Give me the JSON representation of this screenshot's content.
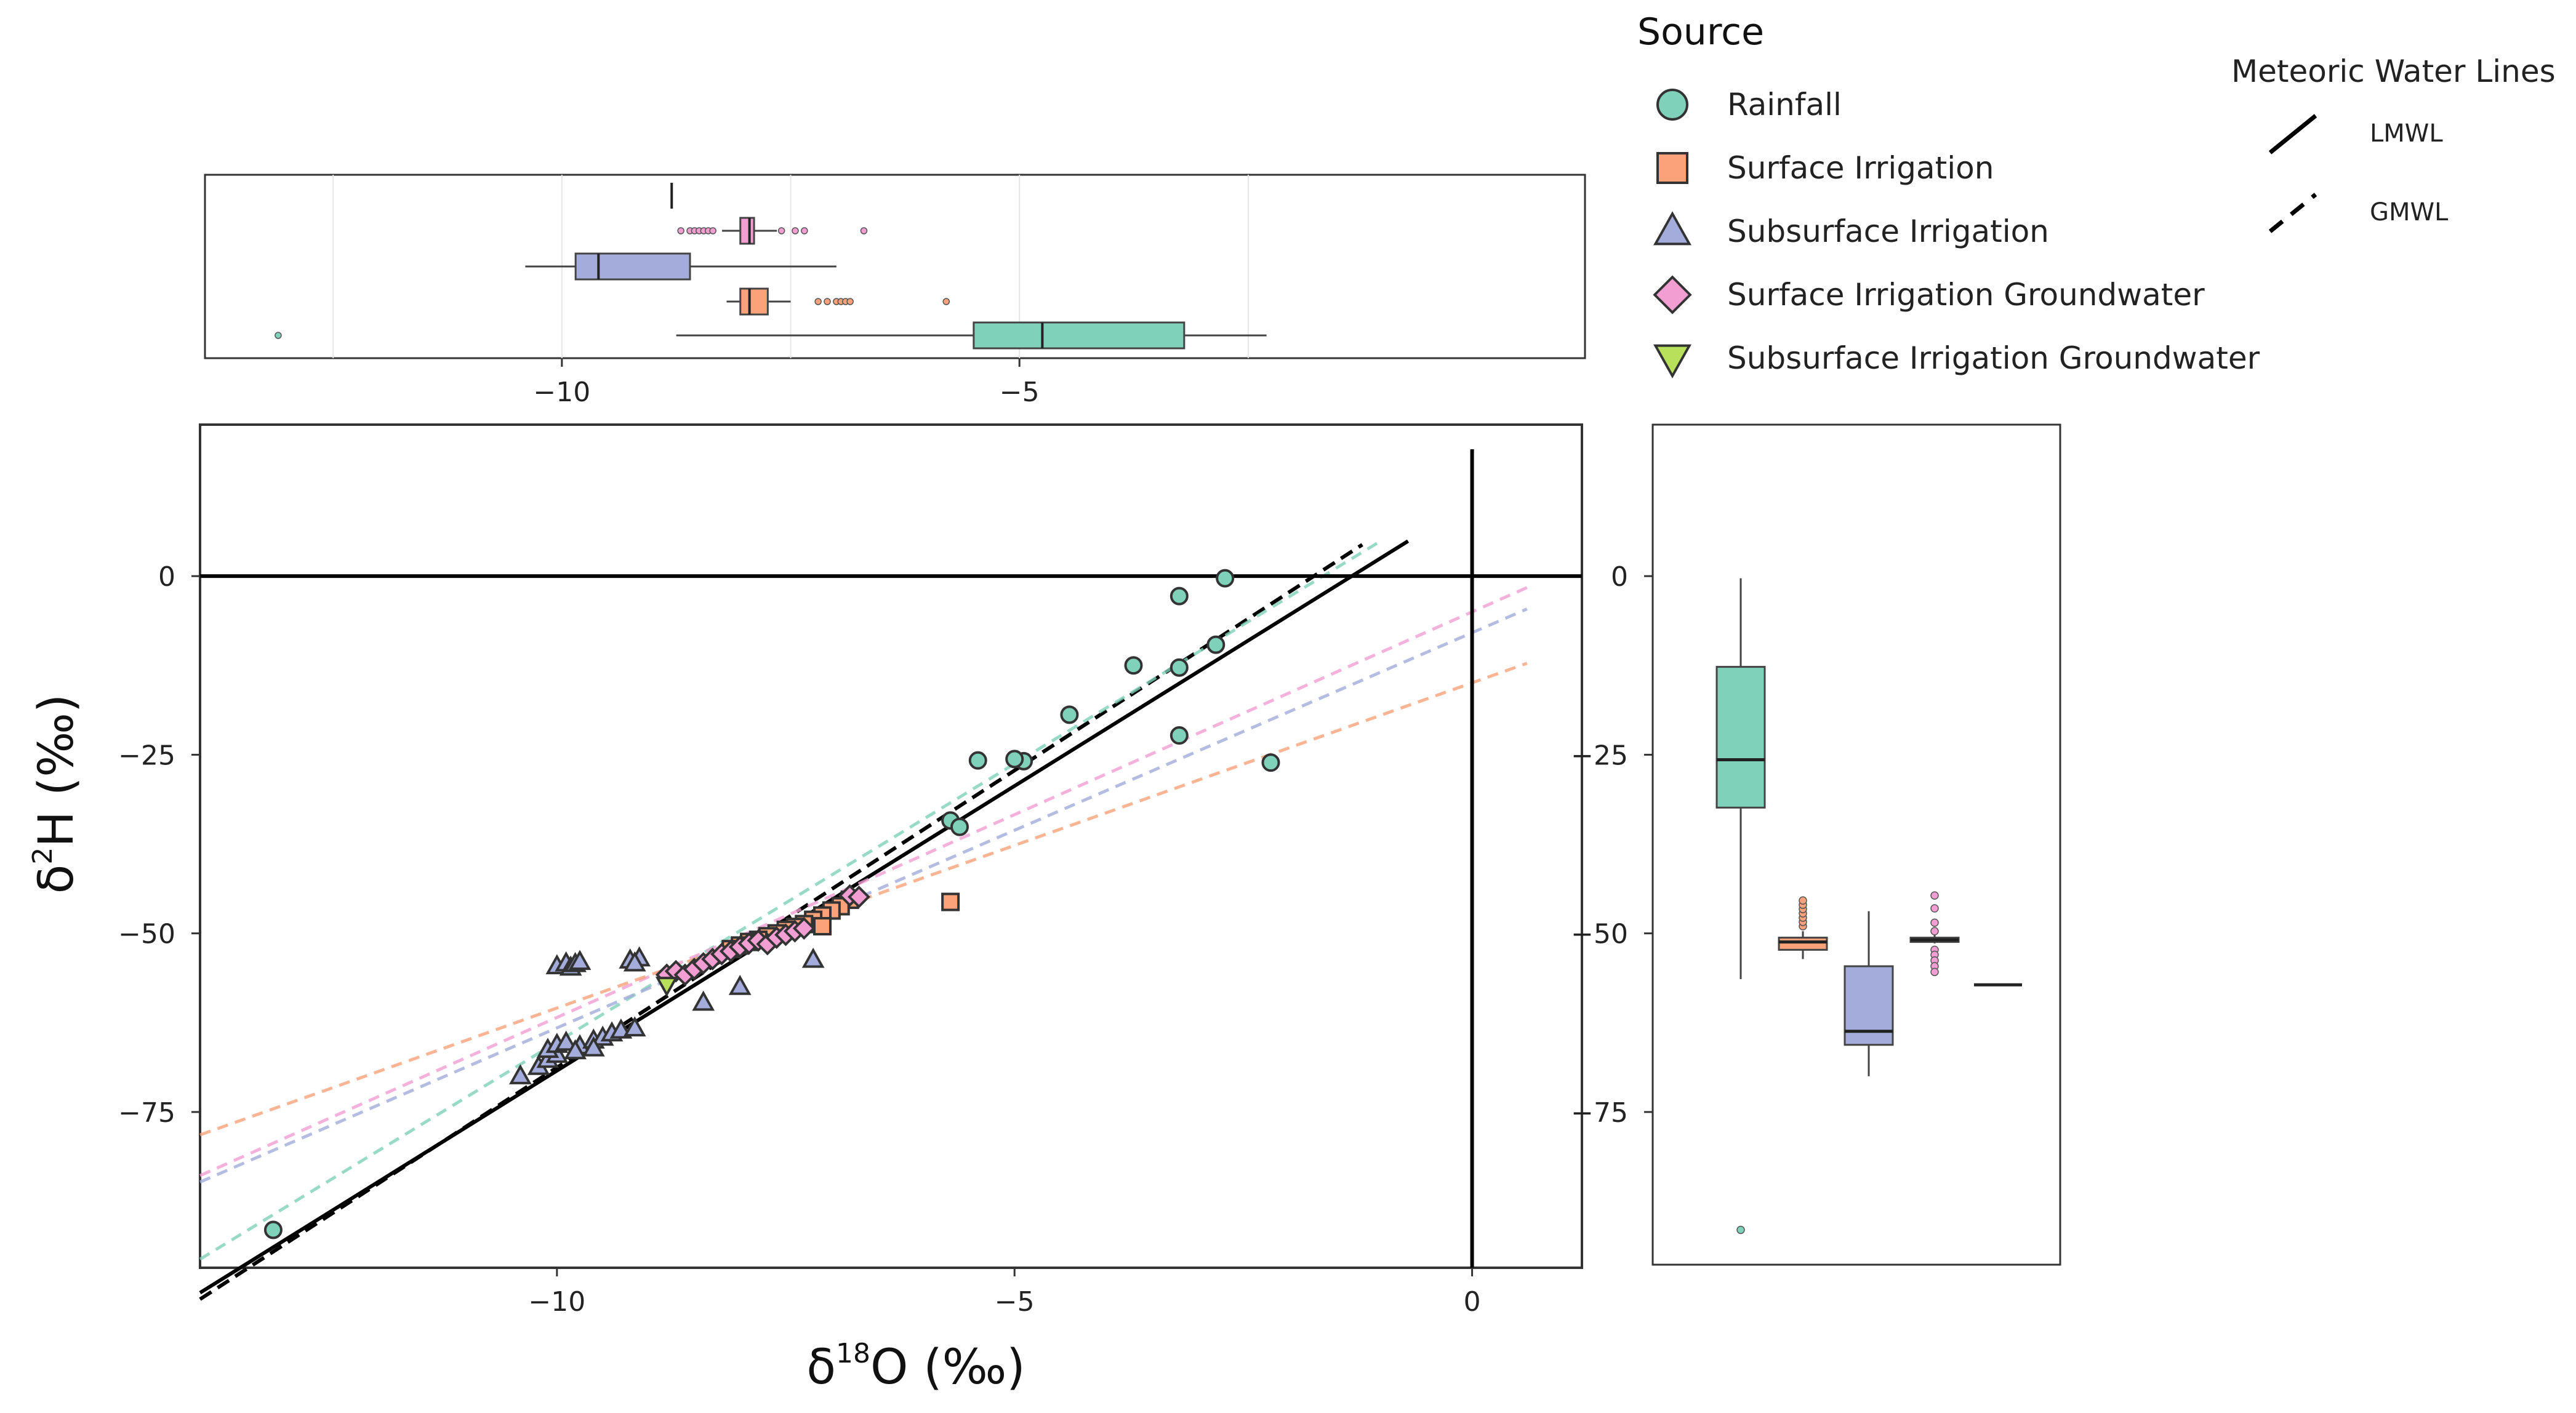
{
  "colors": {
    "Rainfall": "#7fd1b9",
    "SurfaceIrrigation": "#fba27a",
    "SubsurfaceIrrigation": "#a3acda",
    "SurfaceIrrigationGroundwater": "#f29ed3",
    "SubsurfaceIrrigationGroundwater": "#b9e05a"
  },
  "chart_data": [
    {
      "id": "main",
      "type": "scatter",
      "xlabel_base": "δ",
      "xlabel_sup": "18",
      "xlabel_rest": "O (‰)",
      "ylabel_base": "δ",
      "ylabel_sup": "2",
      "ylabel_rest": "H (‰)",
      "xlim": [
        -13.9,
        1.2
      ],
      "ylim": [
        -96.8,
        21.2
      ],
      "xticks": [
        -10,
        -5,
        0
      ],
      "xtick_labels": [
        "−10",
        "−5",
        "0"
      ],
      "yticks": [
        0,
        -25,
        -50,
        -75
      ],
      "ytick_labels": [
        "0",
        "−25",
        "−50",
        "−75"
      ],
      "reference_lines": {
        "x": 0,
        "y": 0
      },
      "series": [
        {
          "name": "Rainfall",
          "marker": "circle",
          "color_key": "Rainfall",
          "points": [
            [
              -13.1,
              -91.5
            ],
            [
              -2.7,
              -0.3
            ],
            [
              -3.2,
              -2.8
            ],
            [
              -3.2,
              -12.8
            ],
            [
              -2.8,
              -9.6
            ],
            [
              -3.7,
              -12.5
            ],
            [
              -4.4,
              -19.4
            ],
            [
              -3.2,
              -22.3
            ],
            [
              -2.2,
              -26.1
            ],
            [
              -4.9,
              -25.9
            ],
            [
              -5.0,
              -25.6
            ],
            [
              -5.4,
              -25.8
            ],
            [
              -5.7,
              -34.2
            ],
            [
              -5.6,
              -35.1
            ]
          ]
        },
        {
          "name": "Surface Irrigation",
          "marker": "square",
          "color_key": "SurfaceIrrigation",
          "points": [
            [
              -5.7,
              -45.6
            ],
            [
              -6.8,
              -45.3
            ],
            [
              -6.9,
              -46.2
            ],
            [
              -7.0,
              -46.8
            ],
            [
              -7.1,
              -47.5
            ],
            [
              -7.2,
              -48.1
            ],
            [
              -7.3,
              -48.7
            ],
            [
              -7.4,
              -49.1
            ],
            [
              -7.5,
              -49.5
            ],
            [
              -7.6,
              -50.0
            ],
            [
              -7.7,
              -50.4
            ],
            [
              -7.8,
              -50.9
            ],
            [
              -7.9,
              -51.2
            ],
            [
              -8.0,
              -51.7
            ],
            [
              -8.1,
              -52.2
            ],
            [
              -7.1,
              -49.0
            ]
          ]
        },
        {
          "name": "Subsurface Irrigation",
          "marker": "triangle-up",
          "color_key": "SubsurfaceIrrigation",
          "points": [
            [
              -10.0,
              -54.6
            ],
            [
              -9.9,
              -54.2
            ],
            [
              -9.85,
              -54.8
            ],
            [
              -9.8,
              -54.3
            ],
            [
              -9.75,
              -54.0
            ],
            [
              -9.2,
              -53.8
            ],
            [
              -9.1,
              -53.5
            ],
            [
              -9.15,
              -54.2
            ],
            [
              -7.2,
              -53.7
            ],
            [
              -8.0,
              -57.5
            ],
            [
              -8.4,
              -59.7
            ],
            [
              -10.4,
              -70.0
            ],
            [
              -10.2,
              -68.7
            ],
            [
              -10.1,
              -67.7
            ],
            [
              -10.0,
              -67.0
            ],
            [
              -10.1,
              -66.3
            ],
            [
              -10.0,
              -65.6
            ],
            [
              -9.9,
              -65.3
            ],
            [
              -9.75,
              -65.8
            ],
            [
              -9.6,
              -65.0
            ],
            [
              -9.5,
              -64.6
            ],
            [
              -9.4,
              -64.0
            ],
            [
              -9.3,
              -63.6
            ],
            [
              -9.15,
              -63.3
            ],
            [
              -9.6,
              -66.1
            ],
            [
              -9.8,
              -66.5
            ]
          ]
        },
        {
          "name": "Surface Irrigation Groundwater",
          "marker": "diamond",
          "color_key": "SurfaceIrrigationGroundwater",
          "points": [
            [
              -8.8,
              -55.8
            ],
            [
              -8.7,
              -55.3
            ],
            [
              -8.6,
              -55.8
            ],
            [
              -8.5,
              -55.0
            ],
            [
              -8.4,
              -54.2
            ],
            [
              -8.3,
              -53.6
            ],
            [
              -8.2,
              -52.9
            ],
            [
              -8.1,
              -52.5
            ],
            [
              -8.0,
              -51.9
            ],
            [
              -7.9,
              -51.4
            ],
            [
              -7.8,
              -51.0
            ],
            [
              -7.7,
              -51.5
            ],
            [
              -7.6,
              -50.6
            ],
            [
              -7.5,
              -50.2
            ],
            [
              -7.4,
              -49.7
            ],
            [
              -7.3,
              -49.3
            ],
            [
              -6.8,
              -44.7
            ],
            [
              -6.7,
              -44.9
            ]
          ]
        },
        {
          "name": "Subsurface Irrigation Groundwater",
          "marker": "triangle-down",
          "color_key": "SubsurfaceIrrigationGroundwater",
          "points": [
            [
              -8.8,
              -57.2
            ]
          ]
        }
      ],
      "lines": [
        {
          "name": "LMWL",
          "style": "solid",
          "color": "#000000",
          "x": [
            -13.9,
            -0.7
          ],
          "y": [
            -100.3,
            4.9
          ]
        },
        {
          "name": "GMWL",
          "style": "dashed",
          "color": "#000000",
          "x": [
            -13.9,
            -1.2
          ],
          "y": [
            -101.2,
            4.4
          ]
        },
        {
          "name": "Rainfall fit",
          "style": "dashed",
          "color_key": "Rainfall",
          "x": [
            -13.9,
            -1.0
          ],
          "y": [
            -95.6,
            4.9
          ]
        },
        {
          "name": "Surface Irrigation Groundwater fit",
          "style": "dashed",
          "color_key": "SurfaceIrrigationGroundwater",
          "x": [
            -13.9,
            0.6
          ],
          "y": [
            -83.9,
            -1.6
          ]
        },
        {
          "name": "Subsurface Irrigation fit",
          "style": "dashed",
          "color_key": "SubsurfaceIrrigation",
          "x": [
            -13.9,
            0.6
          ],
          "y": [
            -84.8,
            -4.6
          ]
        },
        {
          "name": "Surface Irrigation fit",
          "style": "dashed",
          "color_key": "SurfaceIrrigation",
          "x": [
            -13.9,
            0.6
          ],
          "y": [
            -78.2,
            -12.2
          ]
        }
      ]
    },
    {
      "id": "top_box",
      "type": "box",
      "orientation": "horizontal",
      "axis": "x",
      "xlim": [
        -13.9,
        1.2
      ],
      "xticks": [
        -10,
        -5
      ],
      "xtick_labels": [
        "−10",
        "−5"
      ],
      "boxes": [
        {
          "name": "Subsurface Irrigation Groundwater",
          "color_key": "SubsurfaceIrrigationGroundwater",
          "median": -8.8,
          "q1": -8.8,
          "q3": -8.8,
          "whisker_low": -8.8,
          "whisker_high": -8.8,
          "outliers": []
        },
        {
          "name": "Surface Irrigation Groundwater",
          "color_key": "SurfaceIrrigationGroundwater",
          "median": -7.95,
          "q1": -8.05,
          "q3": -7.9,
          "whisker_low": -8.25,
          "whisker_high": -7.65,
          "outliers": [
            -8.7,
            -8.6,
            -8.55,
            -8.5,
            -8.45,
            -8.4,
            -8.35,
            -7.6,
            -7.45,
            -7.35,
            -6.7
          ]
        },
        {
          "name": "Subsurface Irrigation",
          "color_key": "SubsurfaceIrrigation",
          "median": -9.6,
          "q1": -9.85,
          "q3": -8.6,
          "whisker_low": -10.4,
          "whisker_high": -7.0,
          "outliers": []
        },
        {
          "name": "Surface Irrigation",
          "color_key": "SurfaceIrrigation",
          "median": -7.95,
          "q1": -8.05,
          "q3": -7.75,
          "whisker_low": -8.2,
          "whisker_high": -7.5,
          "outliers": [
            -7.2,
            -7.1,
            -7.0,
            -6.95,
            -6.9,
            -6.85,
            -5.8
          ]
        },
        {
          "name": "Rainfall",
          "color_key": "Rainfall",
          "median": -4.75,
          "q1": -5.5,
          "q3": -3.2,
          "whisker_low": -8.75,
          "whisker_high": -2.3,
          "outliers": [
            -13.1
          ]
        }
      ]
    },
    {
      "id": "right_box",
      "type": "box",
      "orientation": "vertical",
      "axis": "y",
      "ylim": [
        -96.8,
        21.2
      ],
      "yticks": [
        0,
        -25,
        -50,
        -75
      ],
      "ytick_labels": [
        "0",
        "−25",
        "−50",
        "−75"
      ],
      "boxes": [
        {
          "name": "Rainfall",
          "color_key": "Rainfall",
          "median": -25.7,
          "q1": -32.4,
          "q3": -12.7,
          "whisker_low": -56.4,
          "whisker_high": -0.3,
          "outliers": [
            -91.5
          ]
        },
        {
          "name": "Surface Irrigation",
          "color_key": "SurfaceIrrigation",
          "median": -51.2,
          "q1": -52.3,
          "q3": -50.6,
          "whisker_low": -53.6,
          "whisker_high": -49.7,
          "outliers": [
            -49.0,
            -48.4,
            -47.8,
            -47.2,
            -46.6,
            -46.0,
            -45.4
          ]
        },
        {
          "name": "Subsurface Irrigation",
          "color_key": "SubsurfaceIrrigation",
          "median": -63.7,
          "q1": -65.6,
          "q3": -54.6,
          "whisker_low": -70.0,
          "whisker_high": -46.9,
          "outliers": []
        },
        {
          "name": "Surface Irrigation Groundwater",
          "color_key": "SurfaceIrrigationGroundwater",
          "median": -50.9,
          "q1": -51.2,
          "q3": -50.6,
          "whisker_low": -51.4,
          "whisker_high": -50.2,
          "outliers": [
            -44.7,
            -46.5,
            -48.5,
            -49.7,
            -52.3,
            -53.0,
            -53.8,
            -54.6,
            -55.4
          ]
        },
        {
          "name": "Subsurface Irrigation Groundwater",
          "color_key": "SubsurfaceIrrigationGroundwater",
          "median": -57.2,
          "q1": -57.2,
          "q3": -57.2,
          "whisker_low": -57.2,
          "whisker_high": -57.2,
          "outliers": []
        }
      ]
    }
  ],
  "legend": {
    "title": "Source",
    "items": [
      {
        "label": "Rainfall",
        "marker": "circle",
        "color_key": "Rainfall"
      },
      {
        "label": "Surface Irrigation",
        "marker": "square",
        "color_key": "SurfaceIrrigation"
      },
      {
        "label": "Subsurface Irrigation",
        "marker": "triangle-up",
        "color_key": "SubsurfaceIrrigation"
      },
      {
        "label": "Surface Irrigation Groundwater",
        "marker": "diamond",
        "color_key": "SurfaceIrrigationGroundwater"
      },
      {
        "label": "Subsurface Irrigation Groundwater",
        "marker": "triangle-down",
        "color_key": "SubsurfaceIrrigationGroundwater"
      }
    ]
  },
  "mwl_legend": {
    "title": "Meteoric Water Lines",
    "items": [
      {
        "label": "LMWL",
        "style": "solid"
      },
      {
        "label": "GMWL",
        "style": "dashed"
      }
    ]
  }
}
